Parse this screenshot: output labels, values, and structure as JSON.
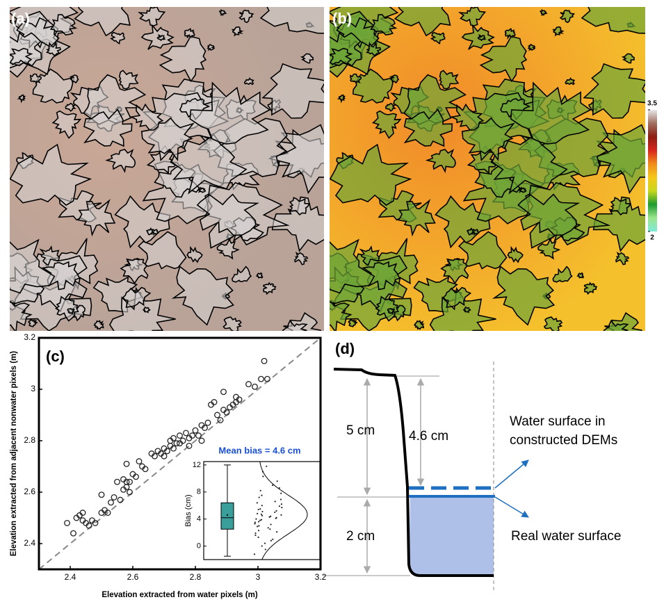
{
  "panels": {
    "a": {
      "label": "(a)"
    },
    "b": {
      "label": "(b)",
      "colorbar": {
        "lim": [
          2,
          3.5
        ],
        "ticks": [
          2,
          3.5
        ],
        "colors": [
          "#7fe8d8",
          "#9be68c",
          "#1e9a2e",
          "#c8d81e",
          "#f5c71a",
          "#f08c1c",
          "#d8261c",
          "#8e1d12",
          "#a07060",
          "#e8e8e8"
        ]
      }
    }
  },
  "chart_data": [
    {
      "type": "scatter",
      "label": "(c)",
      "x_label": "Elevation extracted from water pixels (m)",
      "y_label": "Elevation extracted from adjacent nonwater pixels (m)",
      "xlim": [
        2.3,
        3.2
      ],
      "ylim": [
        2.3,
        3.2
      ],
      "xticks": [
        2.4,
        2.6,
        2.8,
        3,
        3.2
      ],
      "yticks": [
        2.4,
        2.6,
        2.8,
        3,
        3.2
      ],
      "color": "#222222",
      "x": [
        2.39,
        2.41,
        2.42,
        2.43,
        2.44,
        2.44,
        2.45,
        2.46,
        2.47,
        2.48,
        2.5,
        2.5,
        2.51,
        2.52,
        2.53,
        2.54,
        2.55,
        2.56,
        2.57,
        2.57,
        2.58,
        2.58,
        2.58,
        2.59,
        2.59,
        2.6,
        2.61,
        2.62,
        2.63,
        2.64,
        2.66,
        2.67,
        2.68,
        2.69,
        2.7,
        2.7,
        2.71,
        2.72,
        2.72,
        2.73,
        2.73,
        2.74,
        2.75,
        2.75,
        2.76,
        2.77,
        2.78,
        2.78,
        2.79,
        2.8,
        2.81,
        2.82,
        2.82,
        2.83,
        2.84,
        2.85,
        2.86,
        2.87,
        2.88,
        2.89,
        2.89,
        2.9,
        2.91,
        2.92,
        2.93,
        2.93,
        2.94,
        2.97,
        2.99,
        3.01,
        3.02,
        3.03
      ],
      "values": [
        2.48,
        2.44,
        2.5,
        2.51,
        2.52,
        2.49,
        2.48,
        2.47,
        2.49,
        2.48,
        2.52,
        2.59,
        2.53,
        2.52,
        2.56,
        2.58,
        2.64,
        2.57,
        2.65,
        2.61,
        2.62,
        2.64,
        2.71,
        2.64,
        2.6,
        2.67,
        2.66,
        2.72,
        2.7,
        2.69,
        2.75,
        2.74,
        2.76,
        2.75,
        2.77,
        2.74,
        2.76,
        2.8,
        2.78,
        2.81,
        2.77,
        2.79,
        2.82,
        2.79,
        2.8,
        2.83,
        2.81,
        2.78,
        2.82,
        2.84,
        2.82,
        2.86,
        2.8,
        2.85,
        2.87,
        2.94,
        2.95,
        2.9,
        2.88,
        2.99,
        2.92,
        2.91,
        2.93,
        2.94,
        2.97,
        2.95,
        2.96,
        3.02,
        3.01,
        3.04,
        3.11,
        3.04
      ]
    },
    {
      "type": "box",
      "title": "Mean bias = 4.6 cm",
      "y_label": "Bias (cm)",
      "ylim": [
        -2,
        12.5
      ],
      "yticks": [
        0,
        4,
        8,
        12
      ],
      "color": "#3a9e9a",
      "box": {
        "whislo": -1.5,
        "q1": 2.5,
        "med": 4.2,
        "q3": 6.4,
        "whishi": 12,
        "mean": 4.6
      },
      "values": [
        -1.2,
        -0.5,
        0,
        0.4,
        0.8,
        1,
        1.3,
        1.6,
        1.9,
        2.1,
        2.3,
        2.5,
        2.7,
        2.9,
        3,
        3.2,
        3.3,
        3.5,
        3.6,
        3.8,
        3.9,
        4,
        4.1,
        4.2,
        4.3,
        4.4,
        4.5,
        4.6,
        4.7,
        4.8,
        5,
        5.1,
        5.2,
        5.4,
        5.5,
        5.7,
        5.9,
        6,
        6.2,
        6.4,
        6.6,
        6.9,
        7.2,
        7.5,
        7.8,
        8.2,
        8.6,
        9,
        9.6,
        10.3,
        11,
        11.8
      ]
    }
  ],
  "diagram": {
    "label": "(d)",
    "dim_total": "5 cm",
    "dim_bias": "4.6 cm",
    "dim_water": "2 cm",
    "dem_surface": [
      "Water surface in",
      "constructed DEMs"
    ],
    "real_surface": "Real water surface"
  }
}
